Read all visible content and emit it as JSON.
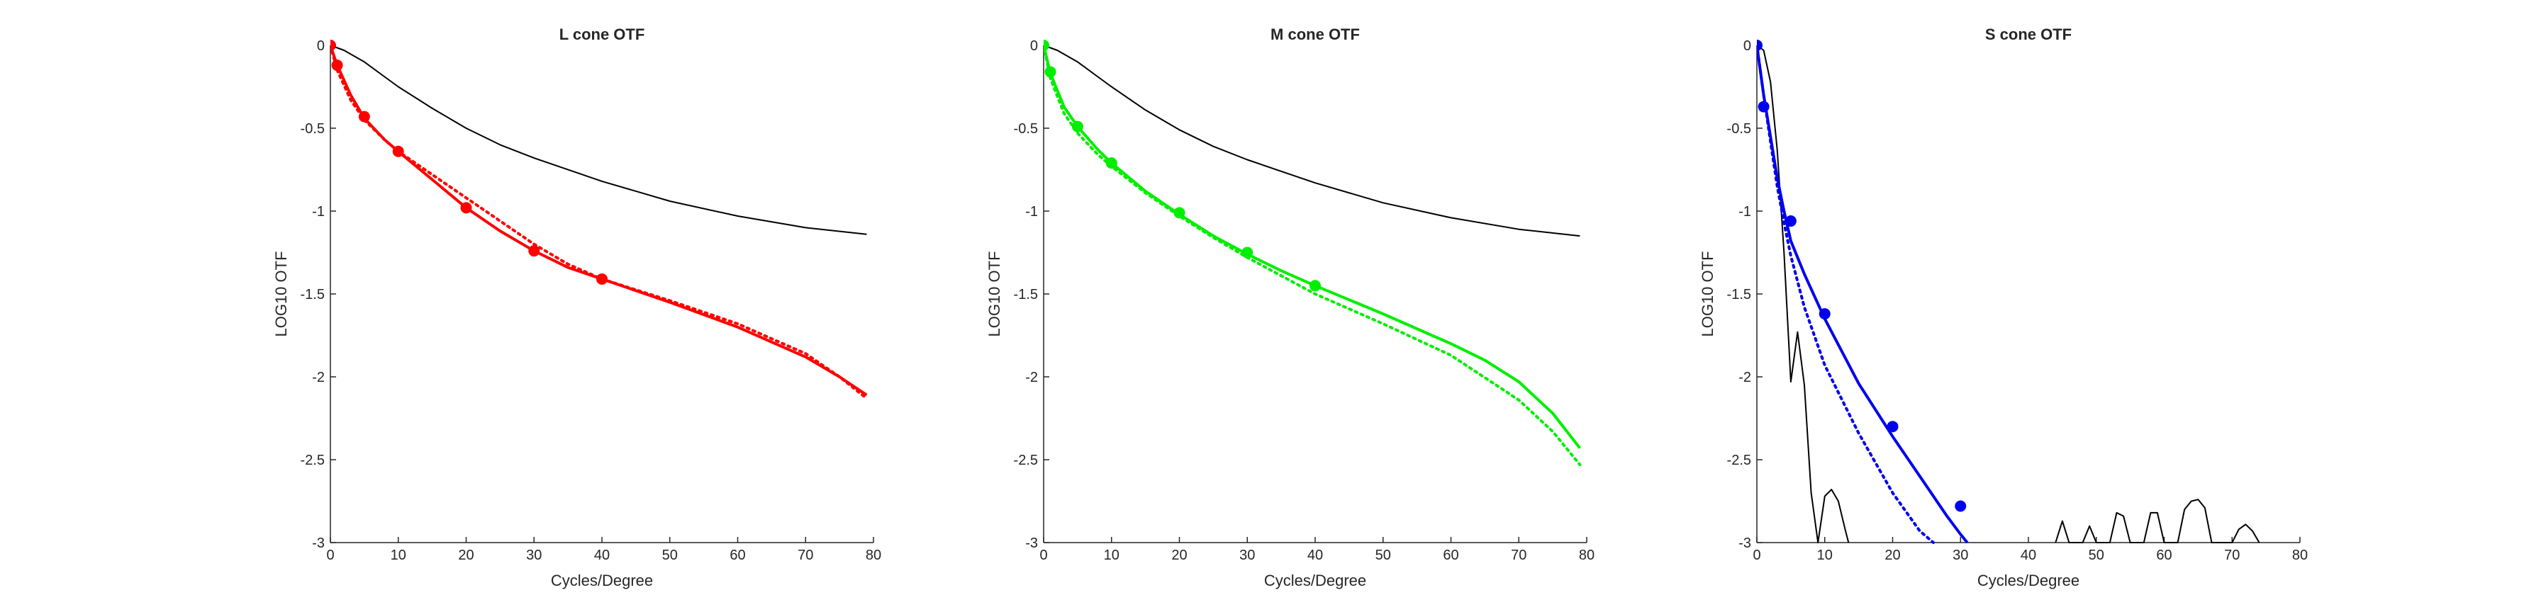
{
  "chart_data": [
    {
      "type": "line",
      "title": "L cone OTF",
      "xlabel": "Cycles/Degree",
      "ylabel": "LOG10 OTF",
      "xlim": [
        0,
        80
      ],
      "ylim": [
        -3,
        0
      ],
      "xticks": [
        "0",
        "10",
        "20",
        "30",
        "40",
        "50",
        "60",
        "70",
        "80"
      ],
      "yticks": [
        "0",
        "-0.5",
        "-1",
        "-1.5",
        "-2",
        "-2.5",
        "-3"
      ],
      "grid": false,
      "series": [
        {
          "style": "black-line",
          "color": "#000000",
          "x": [
            0,
            2,
            5,
            8,
            10,
            15,
            20,
            25,
            30,
            40,
            50,
            60,
            70,
            79
          ],
          "y": [
            0,
            -0.03,
            -0.1,
            -0.19,
            -0.25,
            -0.38,
            -0.5,
            -0.6,
            -0.68,
            -0.82,
            -0.94,
            -1.03,
            -1.1,
            -1.14
          ]
        },
        {
          "style": "solid-fit",
          "color": "#ff0000",
          "x": [
            0,
            1,
            3,
            5,
            8,
            10,
            15,
            20,
            25,
            30,
            35,
            40,
            50,
            60,
            70,
            75,
            79
          ],
          "y": [
            0,
            -0.12,
            -0.3,
            -0.44,
            -0.57,
            -0.64,
            -0.81,
            -0.98,
            -1.12,
            -1.24,
            -1.34,
            -1.41,
            -1.55,
            -1.7,
            -1.88,
            -2.0,
            -2.11
          ]
        },
        {
          "style": "dotted-fit",
          "color": "#ff0000",
          "x": [
            0,
            1,
            3,
            5,
            8,
            10,
            15,
            20,
            25,
            30,
            35,
            40,
            50,
            60,
            70,
            75,
            79
          ],
          "y": [
            0,
            -0.15,
            -0.33,
            -0.45,
            -0.57,
            -0.64,
            -0.78,
            -0.92,
            -1.06,
            -1.2,
            -1.32,
            -1.41,
            -1.54,
            -1.68,
            -1.86,
            -2.0,
            -2.13
          ]
        },
        {
          "style": "markers",
          "color": "#ff0000",
          "x": [
            0,
            1,
            5,
            10,
            20,
            30,
            40
          ],
          "y": [
            0,
            -0.12,
            -0.43,
            -0.64,
            -0.98,
            -1.24,
            -1.41
          ]
        }
      ]
    },
    {
      "type": "line",
      "title": "M cone OTF",
      "xlabel": "Cycles/Degree",
      "ylabel": "LOG10 OTF",
      "xlim": [
        0,
        80
      ],
      "ylim": [
        -3,
        0
      ],
      "xticks": [
        "0",
        "10",
        "20",
        "30",
        "40",
        "50",
        "60",
        "70",
        "80"
      ],
      "yticks": [
        "0",
        "-0.5",
        "-1",
        "-1.5",
        "-2",
        "-2.5",
        "-3"
      ],
      "grid": false,
      "series": [
        {
          "style": "black-line",
          "color": "#000000",
          "x": [
            0,
            2,
            5,
            8,
            10,
            15,
            20,
            25,
            30,
            40,
            50,
            60,
            70,
            79
          ],
          "y": [
            0,
            -0.03,
            -0.1,
            -0.19,
            -0.25,
            -0.39,
            -0.51,
            -0.61,
            -0.69,
            -0.83,
            -0.95,
            -1.04,
            -1.11,
            -1.15
          ]
        },
        {
          "style": "solid-fit",
          "color": "#00ee00",
          "x": [
            0,
            1,
            3,
            5,
            8,
            10,
            15,
            20,
            25,
            30,
            35,
            40,
            50,
            60,
            65,
            70,
            75,
            79
          ],
          "y": [
            0,
            -0.17,
            -0.37,
            -0.49,
            -0.63,
            -0.71,
            -0.88,
            -1.02,
            -1.15,
            -1.26,
            -1.36,
            -1.45,
            -1.62,
            -1.8,
            -1.9,
            -2.03,
            -2.22,
            -2.43
          ]
        },
        {
          "style": "dotted-fit",
          "color": "#00ee00",
          "x": [
            0,
            1,
            3,
            5,
            8,
            10,
            15,
            20,
            25,
            30,
            35,
            40,
            50,
            60,
            70,
            75,
            79
          ],
          "y": [
            0,
            -0.2,
            -0.41,
            -0.53,
            -0.66,
            -0.73,
            -0.89,
            -1.03,
            -1.16,
            -1.28,
            -1.39,
            -1.5,
            -1.68,
            -1.87,
            -2.14,
            -2.33,
            -2.53
          ]
        },
        {
          "style": "markers",
          "color": "#00ee00",
          "x": [
            0,
            1,
            5,
            10,
            20,
            30,
            40
          ],
          "y": [
            0,
            -0.16,
            -0.49,
            -0.71,
            -1.01,
            -1.25,
            -1.45
          ]
        }
      ]
    },
    {
      "type": "line",
      "title": "S cone OTF",
      "xlabel": "Cycles/Degree",
      "ylabel": "LOG10 OTF",
      "xlim": [
        0,
        80
      ],
      "ylim": [
        -3,
        0
      ],
      "xticks": [
        "0",
        "10",
        "20",
        "30",
        "40",
        "50",
        "60",
        "70",
        "80"
      ],
      "yticks": [
        "0",
        "-0.5",
        "-1",
        "-1.5",
        "-2",
        "-2.5",
        "-3"
      ],
      "grid": false,
      "series": [
        {
          "style": "black-line",
          "color": "#000000",
          "x": [
            0,
            1,
            2,
            3,
            4,
            5,
            6,
            7,
            8,
            9,
            10,
            11,
            12,
            13,
            13.5
          ],
          "y": [
            0,
            -0.03,
            -0.22,
            -0.63,
            -1.25,
            -2.03,
            -1.73,
            -2.05,
            -2.7,
            -3.0,
            -2.72,
            -2.68,
            -2.75,
            -2.92,
            -3.0
          ]
        },
        {
          "style": "black-line",
          "color": "#000000",
          "x": [
            44,
            45,
            46,
            48,
            49,
            50,
            52,
            53,
            54,
            55,
            57,
            58,
            59,
            60,
            62,
            63,
            64,
            65,
            66,
            67,
            68,
            70,
            71,
            72,
            73,
            74
          ],
          "y": [
            -3.0,
            -2.87,
            -3.0,
            -3.0,
            -2.9,
            -3.0,
            -3.0,
            -2.82,
            -2.84,
            -3.0,
            -3.0,
            -2.82,
            -2.82,
            -3.0,
            -3.0,
            -2.8,
            -2.75,
            -2.74,
            -2.79,
            -3.0,
            -3.0,
            -3.0,
            -2.92,
            -2.89,
            -2.93,
            -3.0
          ]
        },
        {
          "style": "solid-fit",
          "color": "#0000ee",
          "x": [
            0,
            1,
            2,
            3,
            4,
            5,
            7,
            10,
            15,
            20,
            25,
            28,
            30,
            31
          ],
          "y": [
            0,
            -0.3,
            -0.55,
            -0.8,
            -1.0,
            -1.18,
            -1.38,
            -1.65,
            -2.04,
            -2.36,
            -2.66,
            -2.84,
            -2.95,
            -3.0
          ]
        },
        {
          "style": "dotted-fit",
          "color": "#0000ee",
          "x": [
            0,
            1,
            2,
            3,
            4,
            5,
            7,
            10,
            15,
            20,
            24,
            26
          ],
          "y": [
            0,
            -0.3,
            -0.58,
            -0.85,
            -1.07,
            -1.27,
            -1.58,
            -1.93,
            -2.34,
            -2.7,
            -2.93,
            -3.0
          ]
        },
        {
          "style": "markers",
          "color": "#0000ee",
          "x": [
            0,
            1,
            5,
            10,
            20,
            30
          ],
          "y": [
            0,
            -0.37,
            -1.06,
            -1.62,
            -2.3,
            -2.78
          ]
        }
      ]
    }
  ]
}
